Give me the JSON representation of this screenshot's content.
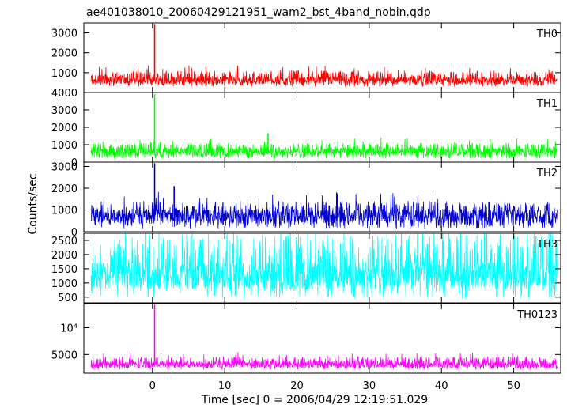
{
  "chart_data": {
    "type": "line",
    "title": "ae401038010_20060429121951_wam2_bst_4band_nobin.qdp",
    "xlabel": "Time [sec] 0 = 2006/04/29 12:19:51.029",
    "ylabel": "Counts/sec",
    "xlim": [
      -9.5,
      56.5
    ],
    "x_ticks": [
      0,
      10,
      20,
      30,
      40,
      50
    ],
    "x_tick_labels": [
      "0",
      "10",
      "20",
      "30",
      "40",
      "50"
    ],
    "series_time_range": [
      -8.5,
      56.0
    ],
    "panels": [
      {
        "name": "TH0",
        "color": "#ff0000",
        "ylim": [
          0,
          3500
        ],
        "y_ticks": [
          1000,
          2000,
          3000
        ],
        "y_tick_labels": [
          "1000",
          "2000",
          "3000"
        ],
        "baseline": 600,
        "noise_band": [
          300,
          1100
        ],
        "spikes": [
          {
            "x": 0.3,
            "y": 3450
          }
        ]
      },
      {
        "name": "TH1",
        "color": "#00ff00",
        "ylim": [
          0,
          4000
        ],
        "y_ticks": [
          0,
          1000,
          2000,
          3000,
          4000
        ],
        "y_tick_labels": [
          "0",
          "1000",
          "2000",
          "3000",
          "4000"
        ],
        "baseline": 600,
        "noise_band": [
          200,
          1100
        ],
        "spikes": [
          {
            "x": 0.3,
            "y": 3900
          },
          {
            "x": 16.0,
            "y": 1650
          }
        ]
      },
      {
        "name": "TH2",
        "color": "#0000d0",
        "ylim": [
          0,
          3200
        ],
        "y_ticks": [
          0,
          1000,
          2000,
          3000
        ],
        "y_tick_labels": [
          "0",
          "1000",
          "2000",
          "3000"
        ],
        "baseline": 700,
        "noise_band": [
          150,
          1400
        ],
        "spikes": [
          {
            "x": 0.3,
            "y": 3150
          },
          {
            "x": 3.0,
            "y": 2100
          },
          {
            "x": 25.5,
            "y": 1800
          }
        ]
      },
      {
        "name": "TH3",
        "color": "#00ffff",
        "ylim": [
          300,
          2750
        ],
        "y_ticks": [
          500,
          1000,
          1500,
          2000,
          2500
        ],
        "y_tick_labels": [
          "500",
          "1000",
          "1500",
          "2000",
          "2500"
        ],
        "baseline": 1250,
        "noise_band": [
          450,
          2750
        ],
        "spikes": []
      },
      {
        "name": "TH0123",
        "color": "#ff00ff",
        "ylim": [
          1500,
          14500
        ],
        "y_ticks": [
          5000,
          10000
        ],
        "y_tick_labels": [
          "5000",
          "10⁴"
        ],
        "baseline": 3100,
        "noise_band": [
          2200,
          4600
        ],
        "spikes": [
          {
            "x": 0.3,
            "y": 14300
          }
        ]
      }
    ]
  }
}
